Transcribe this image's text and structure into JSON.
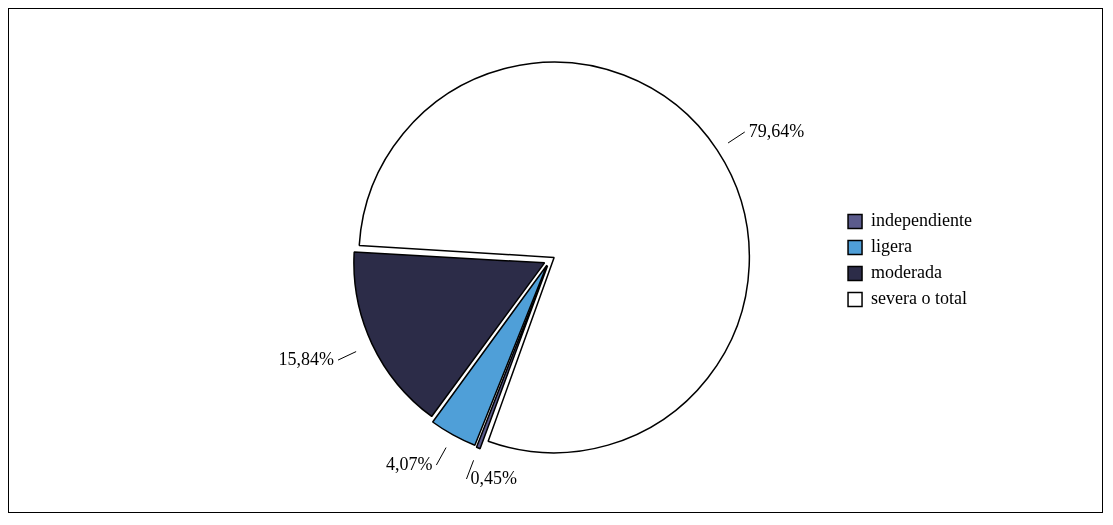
{
  "chart_data": {
    "type": "pie",
    "categories": [
      "independiente",
      "ligera",
      "moderada",
      "severa o total"
    ],
    "values": [
      0.45,
      4.07,
      15.84,
      79.64
    ],
    "colors": [
      "#5b5b8c",
      "#4f9fd8",
      "#2c2c48",
      "#ffffff"
    ],
    "value_labels": [
      "0,45%",
      "4,07%",
      "15,84%",
      "79,64%"
    ],
    "legend": "right"
  }
}
